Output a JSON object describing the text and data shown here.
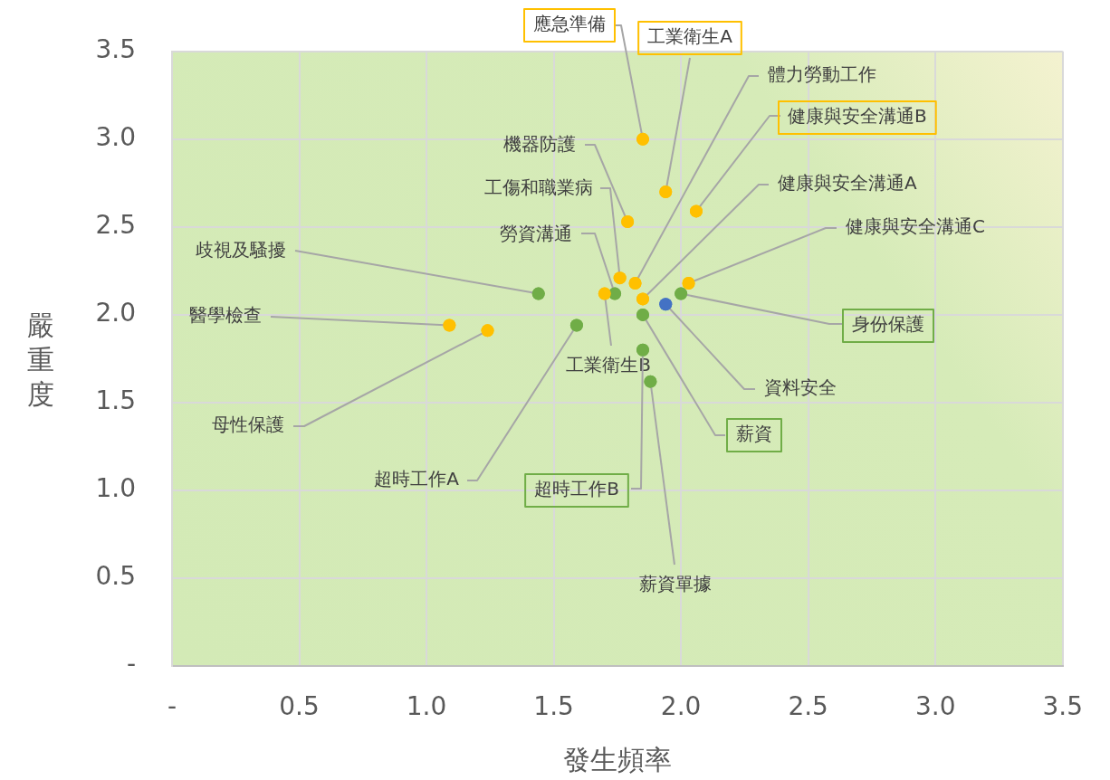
{
  "chart_data": {
    "type": "scatter",
    "xlabel": "發生頻率",
    "ylabel": "嚴重度",
    "x": [
      1.85,
      1.94,
      1.82,
      2.06,
      1.79,
      1.76,
      1.85,
      1.74,
      2.03,
      1.44,
      2.0,
      1.94,
      1.09,
      1.24,
      1.7,
      1.59,
      1.85,
      1.85,
      1.88
    ],
    "values": [
      3.0,
      2.7,
      2.18,
      2.59,
      2.53,
      2.21,
      2.09,
      2.12,
      2.18,
      2.12,
      2.12,
      2.06,
      1.94,
      1.91,
      2.12,
      1.94,
      2.0,
      1.8,
      1.62
    ],
    "colors": [
      "#ffc000",
      "#ffc000",
      "#ffc000",
      "#ffc000",
      "#ffc000",
      "#ffc000",
      "#ffc000",
      "#70ad47",
      "#ffc000",
      "#70ad47",
      "#70ad47",
      "#4472c4",
      "#ffc000",
      "#ffc000",
      "#ffc000",
      "#70ad47",
      "#70ad47",
      "#70ad47",
      "#70ad47"
    ],
    "xlim": [
      0,
      3.5
    ],
    "xticks": [
      {
        "value": 0,
        "label": "-"
      },
      0.5,
      {
        "value": 1,
        "label": "1.0"
      },
      1.5,
      {
        "value": 2,
        "label": "2.0"
      },
      2.5,
      {
        "value": 3,
        "label": "3.0"
      },
      3.5
    ],
    "ylim": [
      0,
      3.5
    ],
    "yticks": [
      {
        "value": 0,
        "label": "-"
      },
      0.5,
      {
        "value": 1,
        "label": "1.0"
      },
      1.5,
      {
        "value": 2,
        "label": "2.0"
      },
      2.5,
      {
        "value": 3,
        "label": "3.0"
      },
      3.5
    ],
    "grid": true,
    "marker": "circle",
    "legend": false,
    "annotations": [
      {
        "text": "應急準備",
        "x": 1.85,
        "y": 3.0
      },
      {
        "text": "工業衛生A",
        "x": 1.94,
        "y": 2.7
      },
      {
        "text": "體力勞動工作",
        "x": 1.82,
        "y": 2.18
      },
      {
        "text": "健康與安全溝通B",
        "x": 2.06,
        "y": 2.59
      },
      {
        "text": "機器防護",
        "x": 1.79,
        "y": 2.53
      },
      {
        "text": "工傷和職業病",
        "x": 1.76,
        "y": 2.21
      },
      {
        "text": "健康與安全溝通A",
        "x": 1.85,
        "y": 2.09
      },
      {
        "text": "勞資溝通",
        "x": 1.74,
        "y": 2.12
      },
      {
        "text": "健康與安全溝通C",
        "x": 2.03,
        "y": 2.18
      },
      {
        "text": "歧視及騷擾",
        "x": 1.44,
        "y": 2.12
      },
      {
        "text": "身份保護",
        "x": 2.0,
        "y": 2.12
      },
      {
        "text": "資料安全",
        "x": 1.94,
        "y": 2.06
      },
      {
        "text": "醫學檢查",
        "x": 1.09,
        "y": 1.94
      },
      {
        "text": "母性保護",
        "x": 1.24,
        "y": 1.91
      },
      {
        "text": "工業衛生B",
        "x": 1.7,
        "y": 2.12
      },
      {
        "text": "超時工作A",
        "x": 1.59,
        "y": 1.94
      },
      {
        "text": "薪資",
        "x": 1.85,
        "y": 2.0
      },
      {
        "text": "超時工作B",
        "x": 1.85,
        "y": 1.8
      },
      {
        "text": "薪資單據",
        "x": 1.88,
        "y": 1.62
      }
    ]
  }
}
